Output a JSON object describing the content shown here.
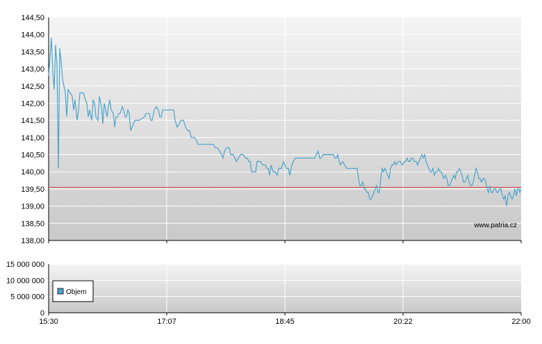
{
  "chart_data": [
    {
      "type": "line",
      "title": "",
      "xlabel": "",
      "ylabel": "",
      "ylim": [
        138.0,
        144.5
      ],
      "yticks": [
        "144,50",
        "144,00",
        "143,50",
        "143,00",
        "142,50",
        "142,00",
        "141,50",
        "141,00",
        "140,50",
        "140,00",
        "139,50",
        "139,00",
        "138,50",
        "138,00"
      ],
      "xticks": [
        "15:30",
        "17:07",
        "18:45",
        "20:22",
        "22:00"
      ],
      "reference_line": {
        "value": 139.55,
        "color": "#d23a3a"
      },
      "watermark": "www.patria.cz",
      "series": [
        {
          "color": "#4aa3cc",
          "points": [
            [
              0,
              142.8
            ],
            [
              4,
              143.9
            ],
            [
              6,
              142.9
            ],
            [
              8,
              142.4
            ],
            [
              10,
              143.7
            ],
            [
              12,
              143.1
            ],
            [
              14,
              140.1
            ],
            [
              16,
              143.6
            ],
            [
              18,
              143.2
            ],
            [
              20,
              142.7
            ],
            [
              24,
              142.3
            ],
            [
              26,
              141.6
            ],
            [
              28,
              142.4
            ],
            [
              34,
              142.2
            ],
            [
              36,
              141.8
            ],
            [
              38,
              142.1
            ],
            [
              41,
              141.5
            ],
            [
              43,
              141.8
            ],
            [
              45,
              142.3
            ],
            [
              50,
              142.3
            ],
            [
              53,
              142.1
            ],
            [
              55,
              142.0
            ],
            [
              57,
              141.6
            ],
            [
              59,
              141.8
            ],
            [
              62,
              141.5
            ],
            [
              64,
              142.1
            ],
            [
              66,
              142.0
            ],
            [
              68,
              141.6
            ],
            [
              71,
              141.5
            ],
            [
              73,
              142.2
            ],
            [
              76,
              141.9
            ],
            [
              78,
              141.4
            ],
            [
              80,
              142.0
            ],
            [
              82,
              141.8
            ],
            [
              84,
              141.6
            ],
            [
              86,
              141.9
            ],
            [
              88,
              142.1
            ],
            [
              90,
              141.8
            ],
            [
              93,
              141.7
            ],
            [
              95,
              141.3
            ],
            [
              97,
              141.6
            ],
            [
              99,
              141.6
            ],
            [
              101,
              141.7
            ],
            [
              103,
              141.7
            ],
            [
              106,
              141.9
            ],
            [
              108,
              141.8
            ],
            [
              110,
              141.6
            ],
            [
              112,
              141.6
            ],
            [
              114,
              141.8
            ],
            [
              116,
              141.7
            ],
            [
              118,
              141.2
            ],
            [
              120,
              141.3
            ],
            [
              124,
              141.5
            ],
            [
              130,
              141.5
            ],
            [
              138,
              141.6
            ],
            [
              140,
              141.7
            ],
            [
              145,
              141.7
            ],
            [
              147,
              141.5
            ],
            [
              149,
              141.5
            ],
            [
              152,
              141.8
            ],
            [
              155,
              141.9
            ],
            [
              158,
              141.8
            ],
            [
              160,
              141.6
            ],
            [
              162,
              141.6
            ],
            [
              164,
              141.8
            ],
            [
              180,
              141.8
            ],
            [
              182,
              141.5
            ],
            [
              185,
              141.3
            ],
            [
              188,
              141.4
            ],
            [
              190,
              141.5
            ],
            [
              194,
              141.5
            ],
            [
              197,
              141.3
            ],
            [
              200,
              141.2
            ],
            [
              203,
              141.2
            ],
            [
              205,
              141.0
            ],
            [
              208,
              141.0
            ],
            [
              210,
              141.0
            ],
            [
              213,
              140.9
            ],
            [
              215,
              140.8
            ],
            [
              220,
              140.8
            ],
            [
              237,
              140.8
            ],
            [
              240,
              140.7
            ],
            [
              243,
              140.7
            ],
            [
              246,
              140.6
            ],
            [
              249,
              140.5
            ],
            [
              251,
              140.4
            ],
            [
              253,
              140.6
            ],
            [
              256,
              140.7
            ],
            [
              260,
              140.7
            ],
            [
              262,
              140.5
            ],
            [
              266,
              140.5
            ],
            [
              268,
              140.4
            ],
            [
              270,
              140.3
            ],
            [
              273,
              140.4
            ],
            [
              276,
              140.5
            ],
            [
              280,
              140.5
            ],
            [
              283,
              140.4
            ],
            [
              286,
              140.4
            ],
            [
              288,
              140.3
            ],
            [
              290,
              140.3
            ],
            [
              292,
              140.0
            ],
            [
              294,
              140.0
            ],
            [
              298,
              140.0
            ],
            [
              300,
              140.3
            ],
            [
              305,
              140.3
            ],
            [
              308,
              140.2
            ],
            [
              312,
              140.2
            ],
            [
              314,
              140.1
            ],
            [
              316,
              140.1
            ],
            [
              318,
              139.9
            ],
            [
              320,
              140.2
            ],
            [
              323,
              140.0
            ],
            [
              326,
              140.0
            ],
            [
              329,
              139.9
            ],
            [
              331,
              140.1
            ],
            [
              335,
              140.1
            ],
            [
              338,
              140.3
            ],
            [
              342,
              140.1
            ],
            [
              345,
              140.1
            ],
            [
              347,
              139.9
            ],
            [
              350,
              140.2
            ],
            [
              352,
              140.3
            ],
            [
              355,
              140.4
            ],
            [
              362,
              140.4
            ],
            [
              370,
              140.4
            ],
            [
              383,
              140.4
            ],
            [
              385,
              140.5
            ],
            [
              388,
              140.6
            ],
            [
              390,
              140.4
            ],
            [
              392,
              140.4
            ],
            [
              395,
              140.5
            ],
            [
              405,
              140.5
            ],
            [
              410,
              140.5
            ],
            [
              412,
              140.4
            ],
            [
              414,
              140.4
            ],
            [
              416,
              140.5
            ],
            [
              418,
              140.3
            ],
            [
              420,
              140.2
            ],
            [
              423,
              140.3
            ],
            [
              426,
              140.2
            ],
            [
              429,
              140.1
            ],
            [
              432,
              140.1
            ],
            [
              435,
              140.1
            ],
            [
              438,
              140.1
            ],
            [
              440,
              140.1
            ],
            [
              444,
              140.1
            ],
            [
              446,
              139.8
            ],
            [
              448,
              139.6
            ],
            [
              450,
              139.6
            ],
            [
              452,
              139.7
            ],
            [
              454,
              139.5
            ],
            [
              456,
              139.5
            ],
            [
              458,
              139.4
            ],
            [
              460,
              139.4
            ],
            [
              462,
              139.2
            ],
            [
              464,
              139.2
            ],
            [
              466,
              139.3
            ],
            [
              468,
              139.4
            ],
            [
              470,
              139.5
            ],
            [
              472,
              139.6
            ],
            [
              474,
              139.4
            ],
            [
              476,
              139.4
            ],
            [
              478,
              139.8
            ],
            [
              480,
              140.1
            ],
            [
              482,
              140.0
            ],
            [
              484,
              140.1
            ],
            [
              486,
              140.0
            ],
            [
              488,
              139.9
            ],
            [
              490,
              139.8
            ],
            [
              492,
              140.1
            ],
            [
              494,
              140.2
            ],
            [
              496,
              140.2
            ],
            [
              498,
              140.3
            ],
            [
              500,
              140.2
            ],
            [
              503,
              140.3
            ],
            [
              506,
              140.3
            ],
            [
              509,
              140.2
            ],
            [
              512,
              140.3
            ],
            [
              514,
              140.3
            ],
            [
              516,
              140.4
            ],
            [
              518,
              140.3
            ],
            [
              520,
              140.3
            ],
            [
              522,
              140.4
            ],
            [
              524,
              140.4
            ],
            [
              526,
              140.3
            ],
            [
              529,
              140.3
            ],
            [
              531,
              140.2
            ],
            [
              533,
              140.3
            ],
            [
              535,
              140.4
            ],
            [
              537,
              140.5
            ],
            [
              539,
              140.4
            ],
            [
              541,
              140.5
            ],
            [
              543,
              140.3
            ],
            [
              545,
              140.2
            ],
            [
              547,
              140.1
            ],
            [
              549,
              140.0
            ],
            [
              551,
              140.0
            ],
            [
              553,
              140.1
            ],
            [
              555,
              139.9
            ],
            [
              557,
              140.0
            ],
            [
              559,
              140.0
            ],
            [
              561,
              140.1
            ],
            [
              563,
              140.0
            ],
            [
              565,
              140.0
            ],
            [
              567,
              139.9
            ],
            [
              569,
              139.8
            ],
            [
              571,
              139.9
            ],
            [
              573,
              139.8
            ],
            [
              575,
              139.6
            ],
            [
              577,
              139.6
            ],
            [
              579,
              139.7
            ],
            [
              581,
              139.8
            ],
            [
              583,
              139.9
            ],
            [
              585,
              139.8
            ],
            [
              587,
              140.0
            ],
            [
              589,
              140.0
            ],
            [
              591,
              140.1
            ],
            [
              593,
              140.0
            ],
            [
              595,
              139.9
            ],
            [
              597,
              139.7
            ],
            [
              599,
              139.7
            ],
            [
              601,
              139.8
            ],
            [
              603,
              139.9
            ],
            [
              605,
              139.7
            ],
            [
              607,
              139.6
            ],
            [
              609,
              139.6
            ],
            [
              611,
              139.7
            ],
            [
              613,
              139.9
            ],
            [
              615,
              140.1
            ],
            [
              617,
              140.0
            ],
            [
              619,
              139.8
            ],
            [
              621,
              139.8
            ],
            [
              623,
              139.7
            ],
            [
              625,
              139.8
            ],
            [
              627,
              139.8
            ],
            [
              629,
              139.7
            ],
            [
              631,
              139.5
            ],
            [
              633,
              139.4
            ],
            [
              635,
              139.6
            ],
            [
              637,
              139.4
            ],
            [
              639,
              139.4
            ],
            [
              641,
              139.5
            ],
            [
              643,
              139.5
            ],
            [
              645,
              139.4
            ],
            [
              647,
              139.4
            ],
            [
              649,
              139.5
            ],
            [
              651,
              139.5
            ],
            [
              653,
              139.3
            ],
            [
              655,
              139.2
            ],
            [
              657,
              139.3
            ],
            [
              659,
              139.0
            ],
            [
              661,
              139.3
            ],
            [
              663,
              139.4
            ],
            [
              665,
              139.3
            ],
            [
              667,
              139.2
            ],
            [
              669,
              139.3
            ],
            [
              671,
              139.5
            ],
            [
              673,
              139.3
            ],
            [
              675,
              139.5
            ],
            [
              677,
              139.5
            ],
            [
              678,
              139.4
            ],
            [
              680,
              139.5
            ]
          ]
        }
      ]
    },
    {
      "type": "bar",
      "title": "",
      "xlabel": "",
      "ylabel": "",
      "ylim": [
        0,
        15000000
      ],
      "yticks": [
        "15 000 000",
        "10 000 000",
        "5 000 000",
        "0"
      ],
      "xticks": [
        "15:30",
        "17:07",
        "18:45",
        "20:22",
        "22:00"
      ],
      "legend": {
        "label": "Objem",
        "color": "#4aa3cc",
        "placement": "bottom-left"
      },
      "values": []
    }
  ]
}
